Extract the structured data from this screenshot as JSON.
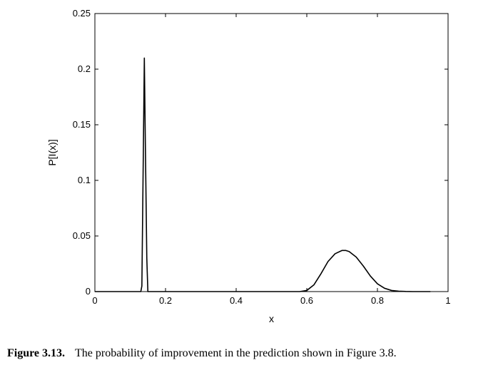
{
  "caption": {
    "label": "Figure 3.13.",
    "text": "The probability of improvement in the prediction shown in Figure 3.8."
  },
  "chart_data": {
    "type": "line",
    "title": "",
    "xlabel": "x",
    "ylabel": "P[I(x)]",
    "xlim": [
      0,
      1
    ],
    "ylim": [
      0,
      0.25
    ],
    "xticks": [
      0,
      0.2,
      0.4,
      0.6,
      0.8,
      1
    ],
    "xtick_labels": [
      "0",
      "0.2",
      "0.4",
      "0.6",
      "0.8",
      "1"
    ],
    "yticks": [
      0,
      0.05,
      0.1,
      0.15,
      0.2,
      0.25
    ],
    "ytick_labels": [
      "0",
      "0.05",
      "0.1",
      "0.15",
      "0.2",
      "0.25"
    ],
    "grid": false,
    "line_color": "#000000",
    "series": [
      {
        "x": [
          0,
          0.13,
          0.133,
          0.137,
          0.14,
          0.143,
          0.147,
          0.15,
          0.2,
          0.4,
          0.58,
          0.6,
          0.62,
          0.64,
          0.66,
          0.68,
          0.7,
          0.71,
          0.72,
          0.74,
          0.76,
          0.78,
          0.8,
          0.82,
          0.84,
          0.86,
          0.88,
          0.9,
          0.95
        ],
        "y": [
          0,
          0,
          0.005,
          0.12,
          0.21,
          0.13,
          0.03,
          0,
          0,
          0,
          0,
          0.001,
          0.006,
          0.016,
          0.027,
          0.034,
          0.037,
          0.037,
          0.036,
          0.031,
          0.023,
          0.014,
          0.007,
          0.003,
          0.001,
          0.0004,
          0.0001,
          0,
          0
        ]
      }
    ]
  }
}
